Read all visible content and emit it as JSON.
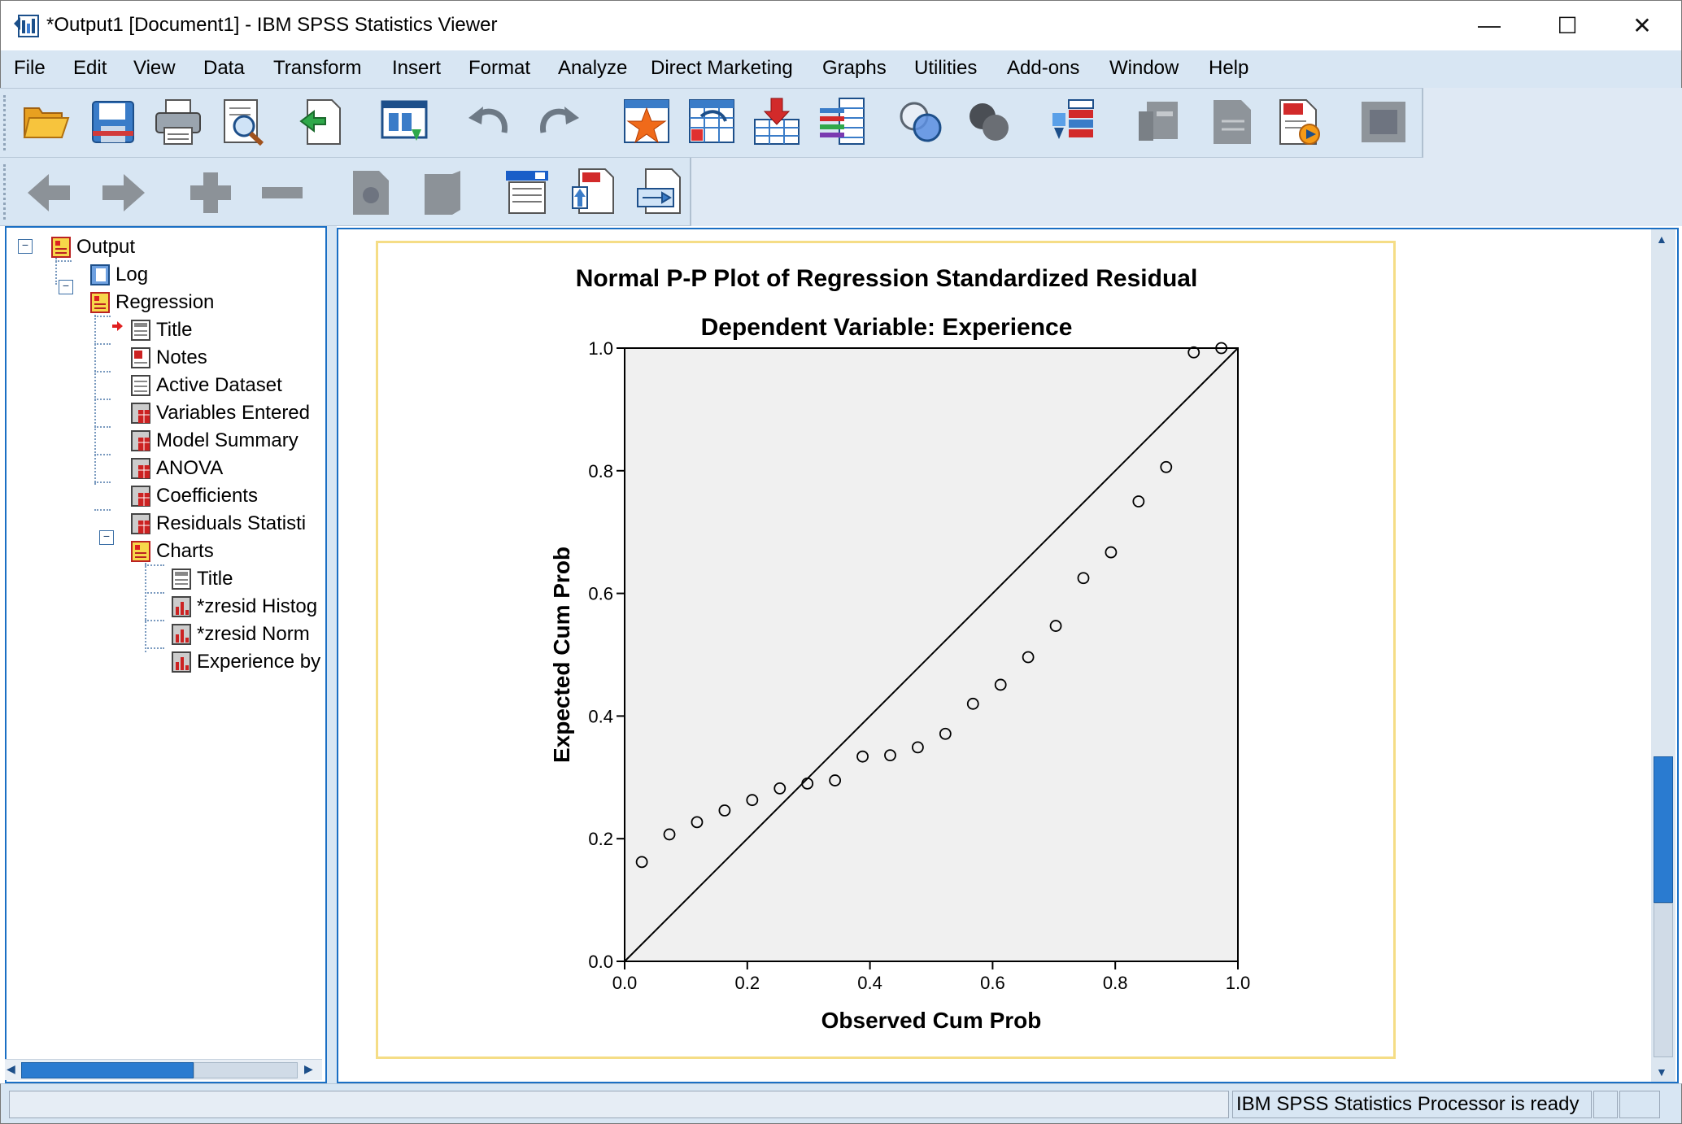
{
  "window": {
    "title": "*Output1 [Document1] - IBM SPSS Statistics Viewer",
    "minimize_glyph": "—",
    "maximize_glyph": "☐",
    "close_glyph": "✕"
  },
  "menu": [
    "File",
    "Edit",
    "View",
    "Data",
    "Transform",
    "Insert",
    "Format",
    "Analyze",
    "Direct Marketing",
    "Graphs",
    "Utilities",
    "Add-ons",
    "Window",
    "Help"
  ],
  "toolbar1_icons": [
    "open-icon",
    "save-icon",
    "print-icon",
    "print-preview-icon",
    "export-icon",
    "recall-dialog-icon",
    "undo-icon",
    "redo-icon",
    "goto-case-icon",
    "goto-variable-icon",
    "insert-cases-icon",
    "variables-icon",
    "show-all-variables-icon",
    "use-sets-icon",
    "designate-window-icon",
    "pivot-icon",
    "chart-builder-icon",
    "script-icon",
    "frame-icon"
  ],
  "toolbar2_icons": [
    "promote-icon",
    "demote-icon",
    "expand-icon",
    "collapse-icon",
    "show-icon",
    "hide-icon",
    "insert-heading-icon",
    "insert-title-icon",
    "insert-text-icon"
  ],
  "nav_tree": {
    "root": "Output",
    "log": "Log",
    "regression": "Regression",
    "regression_items": [
      "Title",
      "Notes",
      "Active Dataset",
      "Variables Entered",
      "Model Summary",
      "ANOVA",
      "Coefficients",
      "Residuals Statisti"
    ],
    "charts": "Charts",
    "chart_items": [
      "Title",
      "*zresid Histog",
      "*zresid Norm",
      "Experience by"
    ]
  },
  "status": {
    "message": "IBM SPSS Statistics Processor is ready"
  },
  "chart_data": {
    "type": "scatter",
    "title": "Normal P-P Plot of Regression Standardized Residual",
    "subtitle": "Dependent Variable: Experience",
    "xlabel": "Observed Cum Prob",
    "ylabel": "Expected Cum Prob",
    "xlim": [
      0.0,
      1.0
    ],
    "ylim": [
      0.0,
      1.0
    ],
    "xticks": [
      "0.0",
      "0.2",
      "0.4",
      "0.6",
      "0.8",
      "1.0"
    ],
    "yticks": [
      "0.0",
      "0.2",
      "0.4",
      "0.6",
      "0.8",
      "1.0"
    ],
    "reference_line": [
      [
        0,
        0
      ],
      [
        1,
        1
      ]
    ],
    "plot_background": "#f0f0f0",
    "grid": false,
    "points": [
      [
        0.028,
        0.162
      ],
      [
        0.073,
        0.207
      ],
      [
        0.118,
        0.227
      ],
      [
        0.163,
        0.246
      ],
      [
        0.208,
        0.263
      ],
      [
        0.253,
        0.282
      ],
      [
        0.298,
        0.29
      ],
      [
        0.343,
        0.295
      ],
      [
        0.388,
        0.334
      ],
      [
        0.433,
        0.336
      ],
      [
        0.478,
        0.349
      ],
      [
        0.523,
        0.371
      ],
      [
        0.568,
        0.42
      ],
      [
        0.613,
        0.451
      ],
      [
        0.658,
        0.496
      ],
      [
        0.703,
        0.547
      ],
      [
        0.748,
        0.625
      ],
      [
        0.793,
        0.667
      ],
      [
        0.838,
        0.75
      ],
      [
        0.883,
        0.806
      ],
      [
        0.928,
        0.993
      ],
      [
        0.973,
        1.0
      ]
    ]
  }
}
